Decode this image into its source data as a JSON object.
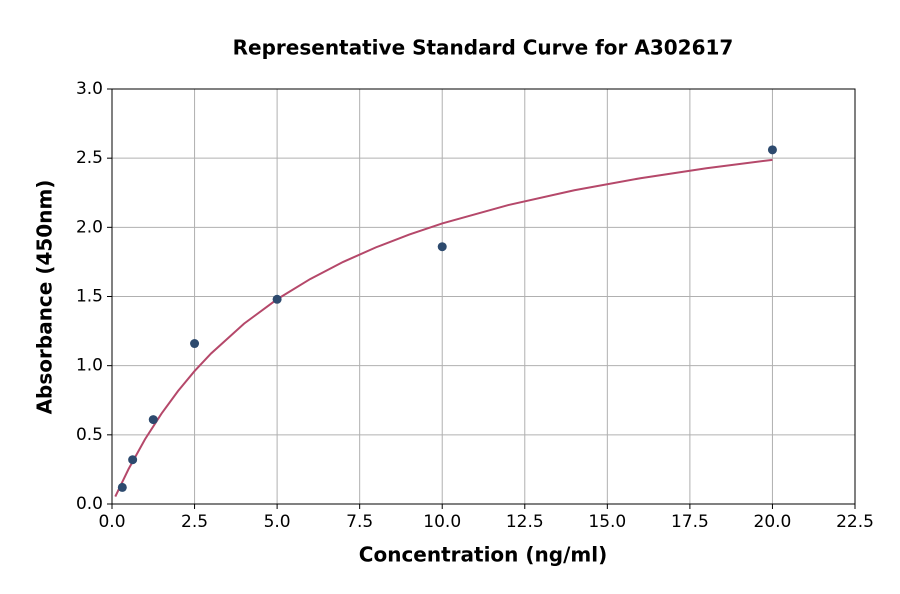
{
  "chart_data": {
    "type": "scatter",
    "title": "Representative Standard Curve for A302617",
    "x_label": "Concentration (ng/ml)",
    "y_label": "Absorbance (450nm)",
    "x": [
      0.3125,
      0.625,
      1.25,
      2.5,
      5,
      10,
      20
    ],
    "values": [
      0.12,
      0.32,
      0.61,
      1.16,
      1.48,
      1.86,
      2.56
    ],
    "color": "#2d4a6e",
    "curve": {
      "color": "#b5486a",
      "x": [
        0.1,
        0.5,
        1,
        1.5,
        2,
        2.5,
        3,
        4,
        5,
        6,
        7,
        8,
        9,
        10,
        12,
        14,
        16,
        18,
        20
      ],
      "values": [
        0.054,
        0.252,
        0.468,
        0.654,
        0.817,
        0.961,
        1.088,
        1.304,
        1.48,
        1.626,
        1.75,
        1.856,
        1.948,
        2.028,
        2.161,
        2.268,
        2.355,
        2.427,
        2.488
      ]
    },
    "xlim": [
      0,
      22.5
    ],
    "ylim": [
      0,
      3
    ],
    "xticks": [
      {
        "value": 0,
        "label": "0.0"
      },
      2.5,
      {
        "value": 5,
        "label": "5.0"
      },
      7.5,
      {
        "value": 10,
        "label": "10.0"
      },
      12.5,
      {
        "value": 15,
        "label": "15.0"
      },
      17.5,
      {
        "value": 20,
        "label": "20.0"
      },
      22.5
    ],
    "yticks": [
      {
        "value": 0,
        "label": "0.0"
      },
      0.5,
      {
        "value": 1,
        "label": "1.0"
      },
      1.5,
      {
        "value": 2,
        "label": "2.0"
      },
      2.5,
      {
        "value": 3,
        "label": "3.0"
      }
    ],
    "grid": true
  }
}
